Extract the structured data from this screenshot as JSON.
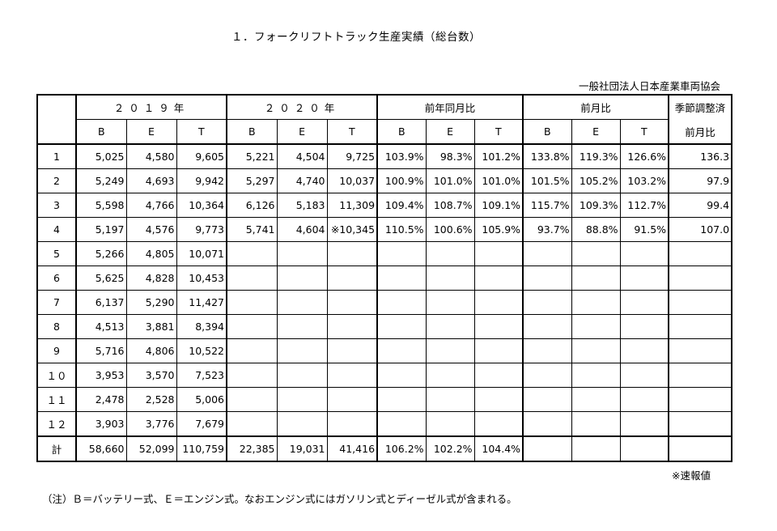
{
  "title": "１．フォークリフトトラック生産実績（総台数）",
  "organization": "一般社団法人日本産業車両協会",
  "headers": {
    "y2019": "２０１９年",
    "y2020": "２０２０年",
    "yoy": "前年同月比",
    "mom": "前月比",
    "seasonal_line1": "季節調整済",
    "seasonal_line2": "前月比",
    "B": "B",
    "E": "E",
    "T": "T"
  },
  "rows": [
    {
      "m": "1",
      "b19": "5,025",
      "e19": "4,580",
      "t19": "9,605",
      "b20": "5,221",
      "e20": "4,504",
      "t20": "9,725",
      "yb": "103.9%",
      "ye": "98.3%",
      "yt": "101.2%",
      "mb": "133.8%",
      "me": "119.3%",
      "mt": "126.6%",
      "s": "136.3"
    },
    {
      "m": "2",
      "b19": "5,249",
      "e19": "4,693",
      "t19": "9,942",
      "b20": "5,297",
      "e20": "4,740",
      "t20": "10,037",
      "yb": "100.9%",
      "ye": "101.0%",
      "yt": "101.0%",
      "mb": "101.5%",
      "me": "105.2%",
      "mt": "103.2%",
      "s": "97.9"
    },
    {
      "m": "3",
      "b19": "5,598",
      "e19": "4,766",
      "t19": "10,364",
      "b20": "6,126",
      "e20": "5,183",
      "t20": "11,309",
      "yb": "109.4%",
      "ye": "108.7%",
      "yt": "109.1%",
      "mb": "115.7%",
      "me": "109.3%",
      "mt": "112.7%",
      "s": "99.4"
    },
    {
      "m": "4",
      "b19": "5,197",
      "e19": "4,576",
      "t19": "9,773",
      "b20": "5,741",
      "e20": "4,604",
      "t20": "※10,345",
      "yb": "110.5%",
      "ye": "100.6%",
      "yt": "105.9%",
      "mb": "93.7%",
      "me": "88.8%",
      "mt": "91.5%",
      "s": "107.0"
    },
    {
      "m": "5",
      "b19": "5,266",
      "e19": "4,805",
      "t19": "10,071",
      "b20": "",
      "e20": "",
      "t20": "",
      "yb": "",
      "ye": "",
      "yt": "",
      "mb": "",
      "me": "",
      "mt": "",
      "s": ""
    },
    {
      "m": "6",
      "b19": "5,625",
      "e19": "4,828",
      "t19": "10,453",
      "b20": "",
      "e20": "",
      "t20": "",
      "yb": "",
      "ye": "",
      "yt": "",
      "mb": "",
      "me": "",
      "mt": "",
      "s": ""
    },
    {
      "m": "7",
      "b19": "6,137",
      "e19": "5,290",
      "t19": "11,427",
      "b20": "",
      "e20": "",
      "t20": "",
      "yb": "",
      "ye": "",
      "yt": "",
      "mb": "",
      "me": "",
      "mt": "",
      "s": ""
    },
    {
      "m": "8",
      "b19": "4,513",
      "e19": "3,881",
      "t19": "8,394",
      "b20": "",
      "e20": "",
      "t20": "",
      "yb": "",
      "ye": "",
      "yt": "",
      "mb": "",
      "me": "",
      "mt": "",
      "s": ""
    },
    {
      "m": "9",
      "b19": "5,716",
      "e19": "4,806",
      "t19": "10,522",
      "b20": "",
      "e20": "",
      "t20": "",
      "yb": "",
      "ye": "",
      "yt": "",
      "mb": "",
      "me": "",
      "mt": "",
      "s": ""
    },
    {
      "m": "１０",
      "b19": "3,953",
      "e19": "3,570",
      "t19": "7,523",
      "b20": "",
      "e20": "",
      "t20": "",
      "yb": "",
      "ye": "",
      "yt": "",
      "mb": "",
      "me": "",
      "mt": "",
      "s": ""
    },
    {
      "m": "１１",
      "b19": "2,478",
      "e19": "2,528",
      "t19": "5,006",
      "b20": "",
      "e20": "",
      "t20": "",
      "yb": "",
      "ye": "",
      "yt": "",
      "mb": "",
      "me": "",
      "mt": "",
      "s": ""
    },
    {
      "m": "１２",
      "b19": "3,903",
      "e19": "3,776",
      "t19": "7,679",
      "b20": "",
      "e20": "",
      "t20": "",
      "yb": "",
      "ye": "",
      "yt": "",
      "mb": "",
      "me": "",
      "mt": "",
      "s": ""
    }
  ],
  "total": {
    "m": "計",
    "b19": "58,660",
    "e19": "52,099",
    "t19": "110,759",
    "b20": "22,385",
    "e20": "19,031",
    "t20": "41,416",
    "yb": "106.2%",
    "ye": "102.2%",
    "yt": "104.4%",
    "mb": "",
    "me": "",
    "mt": "",
    "s": ""
  },
  "note_preliminary": "※速報値",
  "footnote": "（注）Ｂ＝バッテリー式、Ｅ＝エンジン式。なおエンジン式にはガソリン式とディーゼル式が含まれる。"
}
